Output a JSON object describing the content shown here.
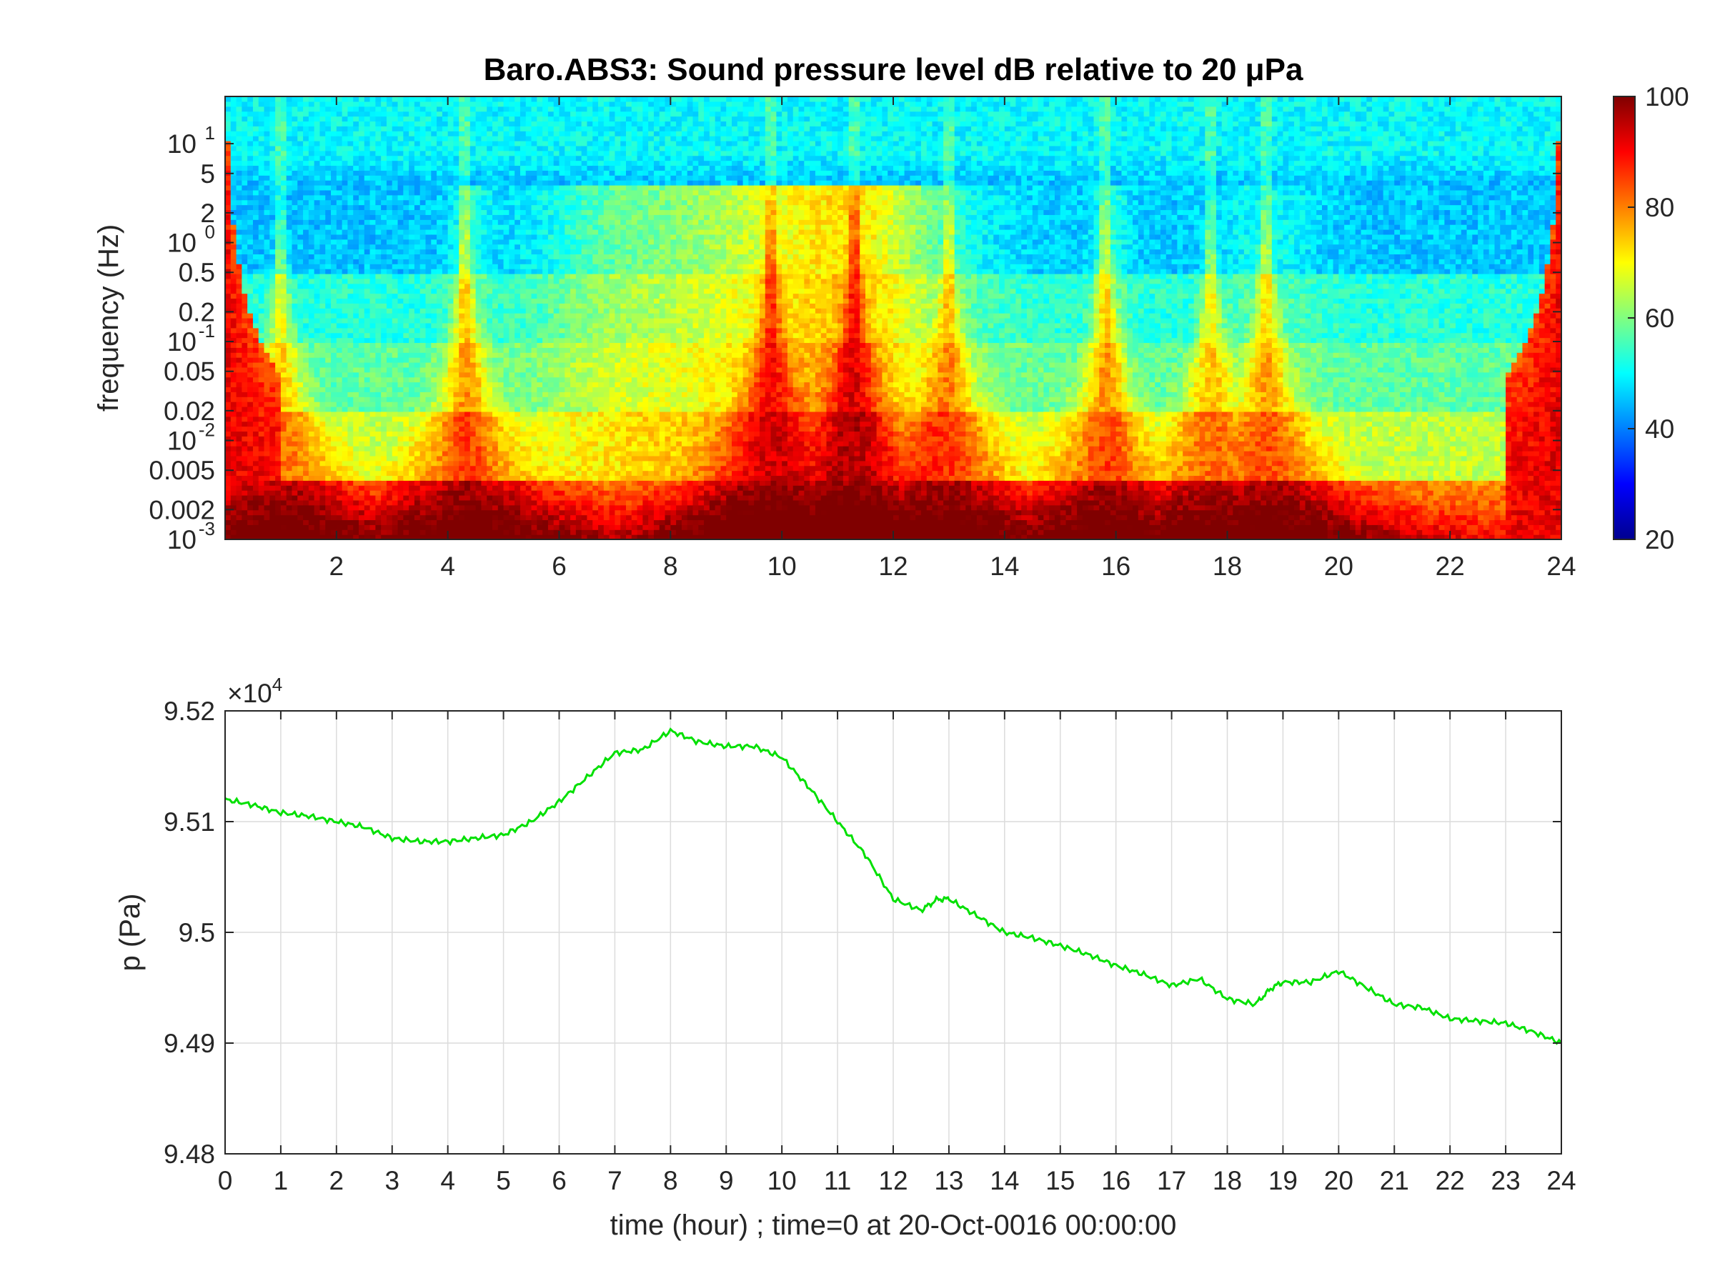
{
  "chart_data": [
    {
      "type": "heatmap",
      "title": "Baro.ABS3: Sound pressure level dB relative to 20 μPa",
      "ylabel": "frequency (Hz)",
      "xlim": [
        0,
        24
      ],
      "ylim": [
        0.001,
        30
      ],
      "y_scale": "log",
      "x_ticks": [
        "2",
        "4",
        "6",
        "8",
        "10",
        "12",
        "14",
        "16",
        "18",
        "20",
        "22",
        "24"
      ],
      "y_ticks": [
        {
          "value": 0.001,
          "label": "10",
          "exp": "-3"
        },
        {
          "value": 0.002,
          "label": "0.002",
          "exp": ""
        },
        {
          "value": 0.005,
          "label": "0.005",
          "exp": ""
        },
        {
          "value": 0.01,
          "label": "10",
          "exp": "-2"
        },
        {
          "value": 0.02,
          "label": "0.02",
          "exp": ""
        },
        {
          "value": 0.05,
          "label": "0.05",
          "exp": ""
        },
        {
          "value": 0.1,
          "label": "10",
          "exp": "-1"
        },
        {
          "value": 0.2,
          "label": "0.2",
          "exp": ""
        },
        {
          "value": 0.5,
          "label": "0.5",
          "exp": ""
        },
        {
          "value": 1,
          "label": "10",
          "exp": "0"
        },
        {
          "value": 2,
          "label": "2",
          "exp": ""
        },
        {
          "value": 5,
          "label": "5",
          "exp": ""
        },
        {
          "value": 10,
          "label": "10",
          "exp": "1"
        }
      ],
      "colorbar": {
        "colormap": "jet",
        "range": [
          20,
          100
        ],
        "ticks": [
          "20",
          "40",
          "60",
          "80",
          "100"
        ]
      },
      "events_hours": [
        1.0,
        4.3,
        9.8,
        11.3,
        13.0,
        15.8,
        17.7,
        18.7
      ],
      "grid": false
    },
    {
      "type": "line",
      "ylabel": "p (Pa)",
      "xlabel": "time (hour) ; time=0 at 20-Oct-0016 00:00:00",
      "xlim": [
        0,
        24
      ],
      "ylim": [
        94800,
        95200
      ],
      "y_multiplier_base": "×10",
      "y_multiplier_exp": "4",
      "x_ticks": [
        "0",
        "1",
        "2",
        "3",
        "4",
        "5",
        "6",
        "7",
        "8",
        "9",
        "10",
        "11",
        "12",
        "13",
        "14",
        "15",
        "16",
        "17",
        "18",
        "19",
        "20",
        "21",
        "22",
        "23",
        "24"
      ],
      "y_ticks": [
        {
          "value": 94800,
          "label": "9.48"
        },
        {
          "value": 94900,
          "label": "9.49"
        },
        {
          "value": 95000,
          "label": "9.5"
        },
        {
          "value": 95100,
          "label": "9.51"
        },
        {
          "value": 95200,
          "label": "9.52"
        }
      ],
      "grid": true,
      "series": [
        {
          "color": "#00e000",
          "x": [
            0,
            0.5,
            1,
            1.5,
            2,
            2.5,
            3,
            3.5,
            4,
            4.5,
            5,
            5.5,
            6,
            6.5,
            7,
            7.5,
            8,
            8.5,
            9,
            9.5,
            10,
            10.5,
            11,
            11.5,
            12,
            12.5,
            12.8,
            13,
            13.5,
            14,
            14.5,
            15,
            15.5,
            16,
            16.5,
            17,
            17.5,
            18,
            18.5,
            18.8,
            19,
            19.5,
            20,
            20.5,
            21,
            21.5,
            22,
            22.5,
            23,
            23.5,
            24
          ],
          "y": [
            95120,
            95115,
            95108,
            95105,
            95100,
            95095,
            95085,
            95082,
            95082,
            95085,
            95088,
            95100,
            95118,
            95140,
            95162,
            95165,
            95182,
            95172,
            95168,
            95168,
            95158,
            95130,
            95100,
            95070,
            95030,
            95020,
            95030,
            95030,
            95015,
            95000,
            94995,
            94988,
            94980,
            94970,
            94962,
            94952,
            94958,
            94940,
            94935,
            94950,
            94955,
            94955,
            94965,
            94950,
            94935,
            94932,
            94922,
            94920,
            94918,
            94910,
            94900
          ]
        }
      ]
    }
  ]
}
